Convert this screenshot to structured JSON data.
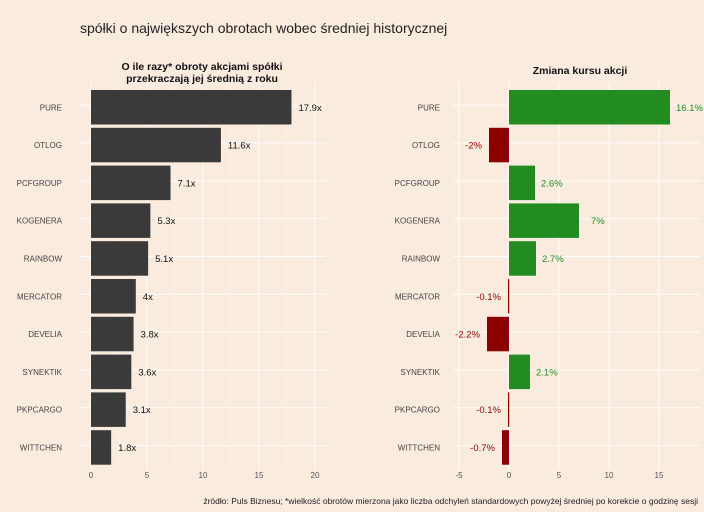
{
  "title": "spółki o największych obrotach wobec średniej historycznej",
  "caption": "źródło: Puls Biznesu; *wielkość obrotów mierzona jako liczba odchyleń standardowych powyżej średniej po korekcie o godzinę sesji",
  "colors": {
    "background": "#faebdf",
    "bar_dark": "#3a3a3a",
    "positive": "#228b22",
    "negative": "#8b0000"
  },
  "chart_data": [
    {
      "type": "bar",
      "orientation": "horizontal",
      "title_lines": [
        "O ile razy* obroty akcjami spółki",
        "przekraczają jej średnią z roku"
      ],
      "categories": [
        "PURE",
        "OTLOG",
        "PCFGROUP",
        "KOGENERA",
        "RAINBOW",
        "MERCATOR",
        "DEVELIA",
        "SYNEKTIK",
        "PKPCARGO",
        "WITTCHEN"
      ],
      "values": [
        17.9,
        11.6,
        7.1,
        5.3,
        5.1,
        4.0,
        3.8,
        3.6,
        3.1,
        1.8
      ],
      "labels": [
        "17.9x",
        "11.6x",
        "7.1x",
        "5.3x",
        "5.1x",
        "4x",
        "3.8x",
        "3.6x",
        "3.1x",
        "1.8x"
      ],
      "xlim": [
        0,
        20
      ],
      "ticks": [
        0,
        5,
        10,
        15,
        20
      ],
      "tick_labels": [
        "0",
        "5",
        "10",
        "15",
        "20"
      ],
      "grid": true
    },
    {
      "type": "bar",
      "orientation": "horizontal",
      "title_lines": [
        "Zmiana kursu akcji"
      ],
      "categories": [
        "PURE",
        "OTLOG",
        "PCFGROUP",
        "KOGENERA",
        "RAINBOW",
        "MERCATOR",
        "DEVELIA",
        "SYNEKTIK",
        "PKPCARGO",
        "WITTCHEN"
      ],
      "values": [
        16.1,
        -2.0,
        2.6,
        7.0,
        2.7,
        -0.1,
        -2.2,
        2.1,
        -0.1,
        -0.7
      ],
      "labels": [
        "16.1%",
        "-2%",
        "2.6%",
        "7%",
        "2.7%",
        "-0.1%",
        "-2.2%",
        "2.1%",
        "-0.1%",
        "-0.7%"
      ],
      "xlim": [
        -5,
        18
      ],
      "ticks": [
        -5,
        0,
        5,
        10,
        15
      ],
      "tick_labels": [
        "-5",
        "0",
        "5",
        "10",
        "15"
      ],
      "grid": true
    }
  ]
}
